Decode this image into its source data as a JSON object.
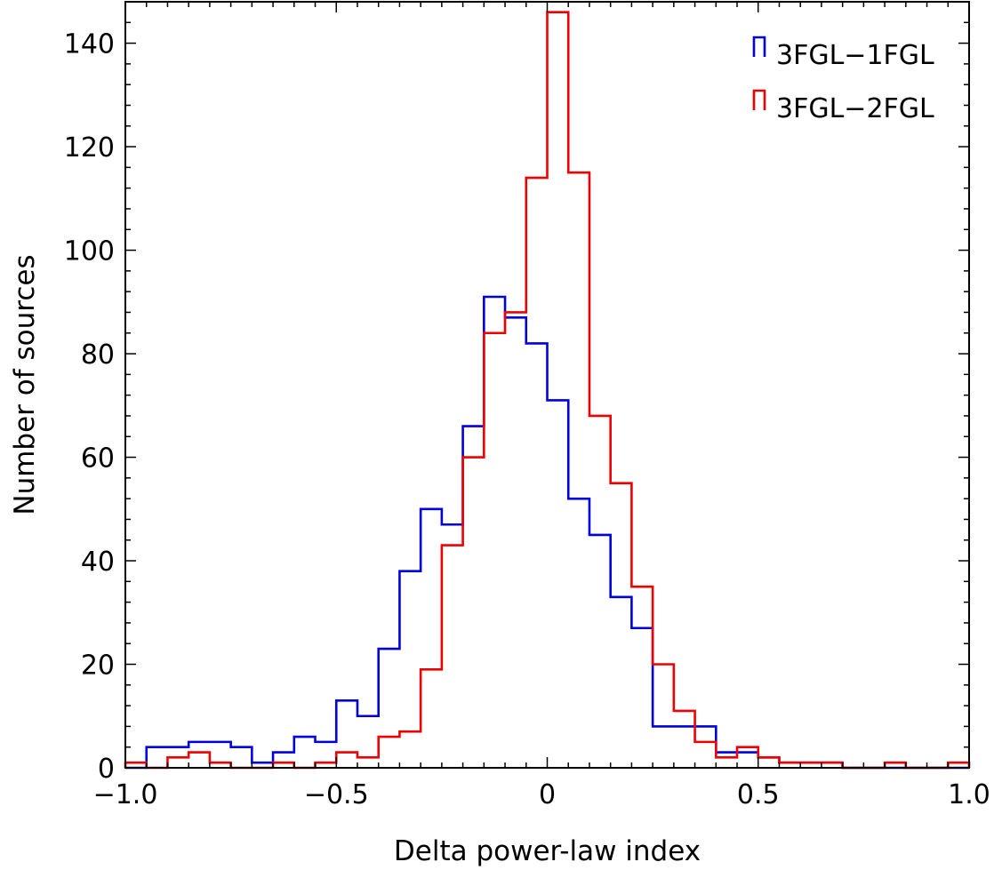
{
  "chart_data": {
    "type": "histogram",
    "title": "",
    "xlabel": "Delta power-law index",
    "ylabel": "Number of sources",
    "xlim": [
      -1.0,
      1.0
    ],
    "ylim": [
      0,
      148
    ],
    "bin_width": 0.05,
    "x_ticks": [
      {
        "value": -1.0,
        "label": "−1.0"
      },
      {
        "value": -0.5,
        "label": "−0.5"
      },
      {
        "value": 0.0,
        "label": "0"
      },
      {
        "value": 0.5,
        "label": "0.5"
      },
      {
        "value": 1.0,
        "label": "1.0"
      }
    ],
    "y_ticks": [
      {
        "value": 0,
        "label": "0"
      },
      {
        "value": 20,
        "label": "20"
      },
      {
        "value": 40,
        "label": "40"
      },
      {
        "value": 60,
        "label": "60"
      },
      {
        "value": 80,
        "label": "80"
      },
      {
        "value": 100,
        "label": "100"
      },
      {
        "value": 120,
        "label": "120"
      },
      {
        "value": 140,
        "label": "140"
      }
    ],
    "grid": false,
    "legend_position": "top-right",
    "bin_edges": [
      -1.0,
      -0.95,
      -0.9,
      -0.85,
      -0.8,
      -0.75,
      -0.7,
      -0.65,
      -0.6,
      -0.55,
      -0.5,
      -0.45,
      -0.4,
      -0.35,
      -0.3,
      -0.25,
      -0.2,
      -0.15,
      -0.1,
      -0.05,
      0.0,
      0.05,
      0.1,
      0.15,
      0.2,
      0.25,
      0.3,
      0.35,
      0.4,
      0.45,
      0.5,
      0.55,
      0.6,
      0.65,
      0.7,
      0.75,
      0.8,
      0.85,
      0.9,
      0.95,
      1.0
    ],
    "series": [
      {
        "name": "3FGL−1FGL",
        "color": "#0000dd",
        "values": [
          0,
          4,
          4,
          5,
          5,
          4,
          1,
          3,
          6,
          5,
          13,
          10,
          23,
          38,
          50,
          47,
          66,
          91,
          87,
          82,
          71,
          52,
          45,
          33,
          27,
          8,
          8,
          8,
          3,
          3,
          2,
          1,
          1,
          1,
          0,
          0,
          0,
          0,
          0,
          0
        ]
      },
      {
        "name": "3FGL−2FGL",
        "color": "#ee0000",
        "values": [
          1,
          0,
          2,
          3,
          1,
          0,
          0,
          1,
          0,
          1,
          3,
          2,
          6,
          7,
          19,
          43,
          60,
          84,
          88,
          114,
          146,
          115,
          68,
          55,
          35,
          20,
          11,
          5,
          2,
          4,
          2,
          1,
          1,
          1,
          0,
          0,
          1,
          0,
          0,
          1
        ]
      }
    ]
  }
}
